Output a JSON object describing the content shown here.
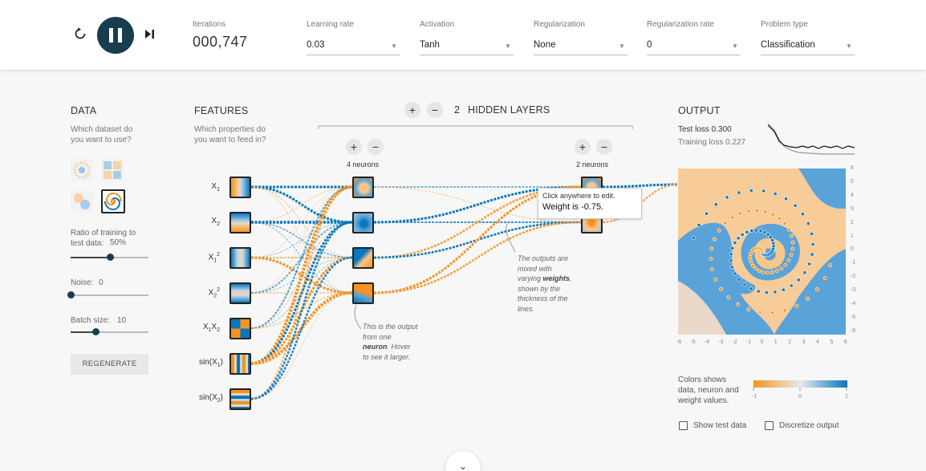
{
  "topbar": {
    "iterations_label": "Iterations",
    "iterations_value": "000,747",
    "controls": [
      {
        "label": "Learning rate",
        "value": "0.03"
      },
      {
        "label": "Activation",
        "value": "Tanh"
      },
      {
        "label": "Regularization",
        "value": "None"
      },
      {
        "label": "Regularization rate",
        "value": "0"
      },
      {
        "label": "Problem type",
        "value": "Classification"
      }
    ],
    "icons": {
      "reset": "reset-icon",
      "pause": "pause-icon",
      "step": "step-forward-icon"
    }
  },
  "data_panel": {
    "title": "DATA",
    "subtitle": "Which dataset do you want to use?",
    "ratio_label": "Ratio of training to test data:",
    "ratio_value": "50%",
    "ratio_fraction": 0.5,
    "noise_label": "Noise:",
    "noise_value": "0",
    "noise_fraction": 0.0,
    "batch_label": "Batch size:",
    "batch_value": "10",
    "batch_fraction": 0.32,
    "regenerate": "REGENERATE"
  },
  "features_panel": {
    "title": "FEATURES",
    "subtitle": "Which properties do you want to feed in?"
  },
  "features": [
    "X1",
    "X2",
    "X1²",
    "X2²",
    "X1X2",
    "sin(X1)",
    "sin(X2)"
  ],
  "hidden": {
    "plus": "+",
    "minus": "−",
    "count": "2",
    "title": "HIDDEN LAYERS",
    "layer1_label": "4 neurons",
    "layer2_label": "2 neurons"
  },
  "tooltip": {
    "line1": "Click anywhere to edit.",
    "line2": "Weight is -0.75."
  },
  "notes": {
    "weights_lines": [
      "The outputs are",
      "mixed with",
      "varying",
      "weights",
      ",",
      "shown by the",
      "thickness of the",
      "lines."
    ],
    "neuron_lines": [
      "This is the output",
      "from one",
      "neuron",
      ". Hover",
      "to see it larger."
    ]
  },
  "output": {
    "title": "OUTPUT",
    "test_loss": "Test loss 0.300",
    "training_loss": "Training loss 0.227",
    "y_ticks": [
      "6",
      "5",
      "4",
      "3",
      "2",
      "1",
      "0",
      "-1",
      "-2",
      "-3",
      "-4",
      "-5",
      "-6"
    ],
    "x_ticks": [
      "-6",
      "-5",
      "-4",
      "-3",
      "-2",
      "-1",
      "0",
      "1",
      "2",
      "3",
      "4",
      "5",
      "6"
    ],
    "legend_text": [
      "Colors shows",
      "data, neuron and",
      "weight values."
    ],
    "legend_ticks": [
      "-1",
      "0",
      "1"
    ],
    "show_test_data": "Show test data",
    "discretize_output": "Discretize output"
  },
  "colors": {
    "orange": "#f59322",
    "blue": "#0877bd",
    "dark": "#183d4e",
    "light_orange": "#f8c78b",
    "light_blue": "#5aa3d8"
  }
}
